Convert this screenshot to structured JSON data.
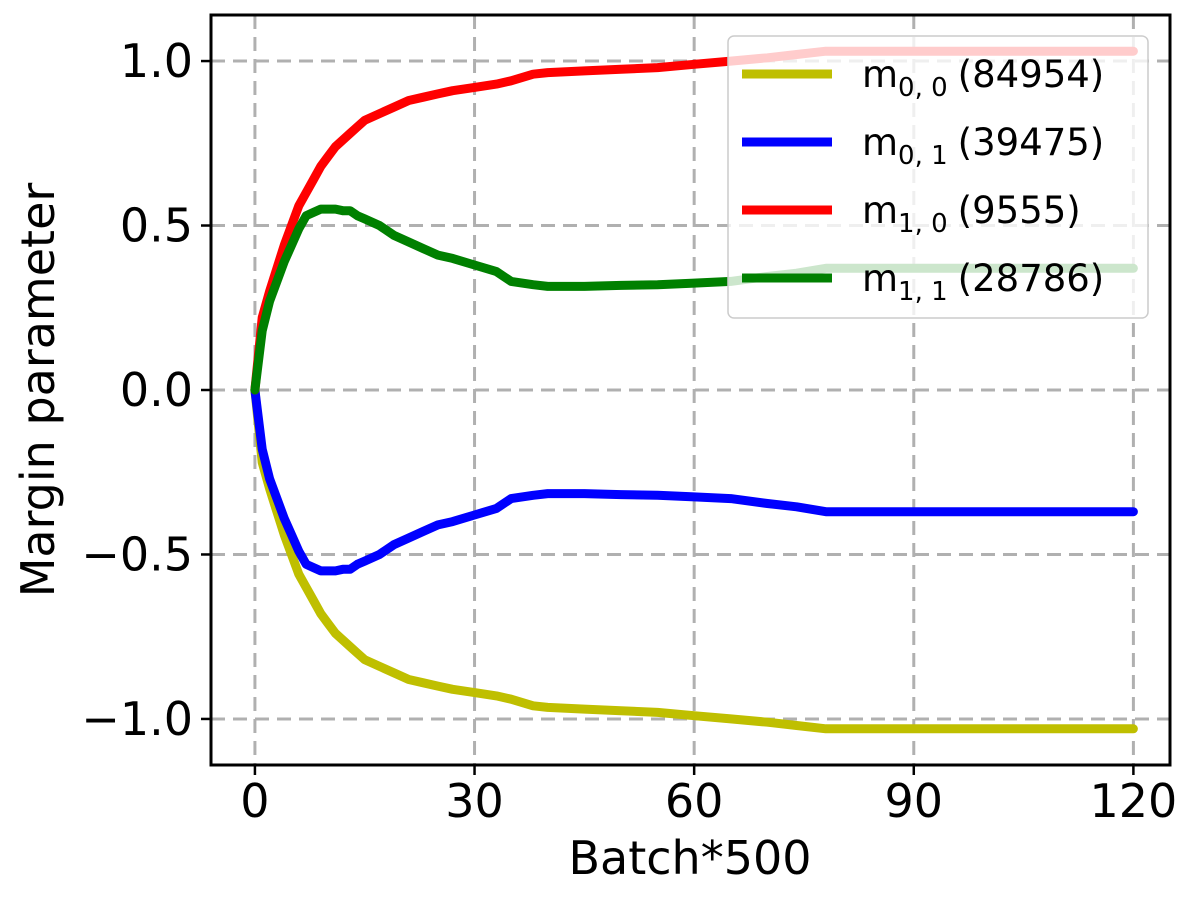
{
  "chart_data": {
    "type": "line",
    "title": "",
    "xlabel": "Batch*500",
    "ylabel": "Margin parameter",
    "xlim": [
      -6,
      125
    ],
    "ylim": [
      -1.14,
      1.14
    ],
    "xticks": [
      0,
      30,
      60,
      90,
      120
    ],
    "xtick_labels": [
      "0",
      "30",
      "60",
      "90",
      "120"
    ],
    "yticks": [
      1.0,
      0.5,
      0.0,
      -0.5,
      -1.0
    ],
    "ytick_labels": [
      "1.0",
      "0.5",
      "0.0",
      "−0.5",
      "−1.0"
    ],
    "grid": true,
    "legend_position": "top-right",
    "series": [
      {
        "name": "m0,0",
        "label_base": "m",
        "label_sub": "0, 0",
        "label_count": "(84954)",
        "color": "#bfbf00",
        "x": [
          0,
          1,
          2,
          3,
          4,
          5,
          6,
          7,
          8,
          9,
          10,
          11,
          12,
          13,
          14,
          15,
          17,
          19,
          21,
          23,
          25,
          27,
          30,
          33,
          35,
          38,
          40,
          45,
          50,
          55,
          60,
          65,
          70,
          74,
          78,
          80,
          85,
          90,
          95,
          100,
          105,
          110,
          115,
          120
        ],
        "y": [
          0,
          -0.22,
          -0.3,
          -0.37,
          -0.44,
          -0.5,
          -0.56,
          -0.6,
          -0.64,
          -0.68,
          -0.71,
          -0.74,
          -0.76,
          -0.78,
          -0.8,
          -0.82,
          -0.84,
          -0.86,
          -0.88,
          -0.89,
          -0.9,
          -0.91,
          -0.92,
          -0.93,
          -0.94,
          -0.96,
          -0.965,
          -0.97,
          -0.975,
          -0.98,
          -0.99,
          -1.0,
          -1.01,
          -1.02,
          -1.03,
          -1.03,
          -1.03,
          -1.03,
          -1.03,
          -1.03,
          -1.03,
          -1.03,
          -1.03,
          -1.03
        ]
      },
      {
        "name": "m0,1",
        "label_base": "m",
        "label_sub": "0, 1",
        "label_count": "(39475)",
        "color": "#0000ff",
        "x": [
          0,
          1,
          2,
          3,
          4,
          5,
          6,
          7,
          8,
          9,
          10,
          11,
          12,
          13,
          14,
          15,
          17,
          19,
          21,
          23,
          25,
          27,
          30,
          33,
          35,
          38,
          40,
          45,
          50,
          55,
          60,
          65,
          70,
          74,
          78,
          80,
          85,
          90,
          95,
          100,
          105,
          110,
          115,
          120
        ],
        "y": [
          0,
          -0.18,
          -0.27,
          -0.33,
          -0.39,
          -0.44,
          -0.49,
          -0.53,
          -0.54,
          -0.55,
          -0.55,
          -0.55,
          -0.545,
          -0.545,
          -0.53,
          -0.52,
          -0.5,
          -0.47,
          -0.45,
          -0.43,
          -0.41,
          -0.4,
          -0.38,
          -0.36,
          -0.33,
          -0.32,
          -0.315,
          -0.315,
          -0.318,
          -0.32,
          -0.325,
          -0.33,
          -0.345,
          -0.355,
          -0.37,
          -0.37,
          -0.37,
          -0.37,
          -0.37,
          -0.37,
          -0.37,
          -0.37,
          -0.37,
          -0.37
        ]
      },
      {
        "name": "m1,0",
        "label_base": "m",
        "label_sub": "1, 0",
        "label_count": "(9555)",
        "color": "#ff0000",
        "x": [
          0,
          1,
          2,
          3,
          4,
          5,
          6,
          7,
          8,
          9,
          10,
          11,
          12,
          13,
          14,
          15,
          17,
          19,
          21,
          23,
          25,
          27,
          30,
          33,
          35,
          38,
          40,
          45,
          50,
          55,
          60,
          65,
          70,
          74,
          78,
          80,
          85,
          90,
          95,
          100,
          105,
          110,
          115,
          120
        ],
        "y": [
          0,
          0.22,
          0.3,
          0.37,
          0.44,
          0.5,
          0.56,
          0.6,
          0.64,
          0.68,
          0.71,
          0.74,
          0.76,
          0.78,
          0.8,
          0.82,
          0.84,
          0.86,
          0.88,
          0.89,
          0.9,
          0.91,
          0.92,
          0.93,
          0.94,
          0.96,
          0.965,
          0.97,
          0.975,
          0.98,
          0.99,
          1.0,
          1.01,
          1.02,
          1.03,
          1.03,
          1.03,
          1.03,
          1.03,
          1.03,
          1.03,
          1.03,
          1.03,
          1.03
        ]
      },
      {
        "name": "m1,1",
        "label_base": "m",
        "label_sub": "1, 1",
        "label_count": "(28786)",
        "color": "#008000",
        "x": [
          0,
          1,
          2,
          3,
          4,
          5,
          6,
          7,
          8,
          9,
          10,
          11,
          12,
          13,
          14,
          15,
          17,
          19,
          21,
          23,
          25,
          27,
          30,
          33,
          35,
          38,
          40,
          45,
          50,
          55,
          60,
          65,
          70,
          74,
          78,
          80,
          85,
          90,
          95,
          100,
          105,
          110,
          115,
          120
        ],
        "y": [
          0,
          0.18,
          0.27,
          0.33,
          0.39,
          0.44,
          0.49,
          0.53,
          0.54,
          0.55,
          0.55,
          0.55,
          0.545,
          0.545,
          0.53,
          0.52,
          0.5,
          0.47,
          0.45,
          0.43,
          0.41,
          0.4,
          0.38,
          0.36,
          0.33,
          0.32,
          0.315,
          0.315,
          0.318,
          0.32,
          0.325,
          0.33,
          0.345,
          0.355,
          0.37,
          0.37,
          0.37,
          0.37,
          0.37,
          0.37,
          0.37,
          0.37,
          0.37,
          0.37
        ]
      }
    ]
  }
}
